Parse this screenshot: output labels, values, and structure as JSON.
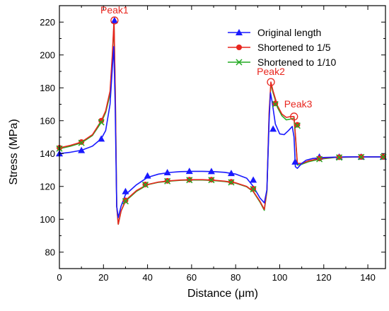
{
  "chart_data": {
    "type": "line",
    "xlabel": "Distance (μm)",
    "ylabel": "Stress (MPa)",
    "xlim": [
      0,
      148
    ],
    "ylim": [
      70,
      230
    ],
    "xticks": [
      0,
      20,
      40,
      60,
      80,
      100,
      120,
      140
    ],
    "yticks": [
      80,
      100,
      120,
      140,
      160,
      180,
      200,
      220
    ],
    "grid": false,
    "legend_position": "top-right",
    "series": [
      {
        "name": "Original length",
        "color": "#1a1aff",
        "marker": "triangle",
        "curve": [
          [
            0,
            140
          ],
          [
            5,
            140.8
          ],
          [
            10,
            142
          ],
          [
            15,
            144.5
          ],
          [
            19,
            149
          ],
          [
            21,
            154
          ],
          [
            23,
            170
          ],
          [
            24,
            192
          ],
          [
            24.7,
            205
          ],
          [
            25.3,
            170
          ],
          [
            26,
            108
          ],
          [
            26.7,
            101
          ],
          [
            28,
            108
          ],
          [
            30,
            115
          ],
          [
            35,
            121
          ],
          [
            40,
            125.5
          ],
          [
            45,
            127.5
          ],
          [
            50,
            128.5
          ],
          [
            55,
            129
          ],
          [
            60,
            129.2
          ],
          [
            65,
            129.2
          ],
          [
            70,
            129
          ],
          [
            75,
            128.6
          ],
          [
            80,
            127.5
          ],
          [
            85,
            125
          ],
          [
            88,
            120
          ],
          [
            91,
            113
          ],
          [
            93,
            110
          ],
          [
            94.2,
            118
          ],
          [
            95.2,
            160
          ],
          [
            95.8,
            177
          ],
          [
            96.5,
            172
          ],
          [
            98,
            158
          ],
          [
            100,
            152
          ],
          [
            102,
            151.5
          ],
          [
            104,
            154
          ],
          [
            105.7,
            156.5
          ],
          [
            106.5,
            150
          ],
          [
            107.1,
            132
          ],
          [
            108,
            131
          ],
          [
            110,
            134
          ],
          [
            112,
            136
          ],
          [
            115,
            137
          ],
          [
            120,
            137.6
          ],
          [
            130,
            138
          ],
          [
            148,
            138
          ]
        ],
        "markers": [
          [
            0,
            140
          ],
          [
            10,
            142
          ],
          [
            19,
            149
          ],
          [
            25,
            221
          ],
          [
            30,
            117
          ],
          [
            40,
            126.5
          ],
          [
            49,
            128.5
          ],
          [
            59,
            129.3
          ],
          [
            69,
            129.2
          ],
          [
            78,
            128
          ],
          [
            88,
            124
          ],
          [
            97,
            155
          ],
          [
            107,
            135
          ],
          [
            118,
            138
          ],
          [
            127,
            138
          ],
          [
            137,
            138
          ],
          [
            147,
            138
          ]
        ]
      },
      {
        "name": "Shortened to 1/5",
        "color": "#e8261e",
        "marker": "circle",
        "curve": [
          [
            0,
            143.5
          ],
          [
            5,
            145
          ],
          [
            10,
            147
          ],
          [
            15,
            151.5
          ],
          [
            19,
            160
          ],
          [
            21,
            166
          ],
          [
            23,
            178
          ],
          [
            24,
            200
          ],
          [
            24.8,
            221
          ],
          [
            25.4,
            175
          ],
          [
            26,
            108
          ],
          [
            26.7,
            97
          ],
          [
            28,
            105
          ],
          [
            30,
            111.5
          ],
          [
            35,
            117.5
          ],
          [
            40,
            121.2
          ],
          [
            45,
            122.7
          ],
          [
            50,
            123.4
          ],
          [
            55,
            123.9
          ],
          [
            60,
            124.1
          ],
          [
            65,
            124.1
          ],
          [
            70,
            123.8
          ],
          [
            75,
            123.2
          ],
          [
            80,
            122.2
          ],
          [
            85,
            120
          ],
          [
            88,
            117
          ],
          [
            91,
            111
          ],
          [
            93,
            106
          ],
          [
            94.2,
            118
          ],
          [
            95.2,
            165
          ],
          [
            96,
            183.5
          ],
          [
            97,
            178
          ],
          [
            99,
            169
          ],
          [
            101,
            164
          ],
          [
            103,
            162
          ],
          [
            105,
            162.5
          ],
          [
            106.5,
            162.5
          ],
          [
            107.2,
            150
          ],
          [
            108,
            134
          ],
          [
            110,
            134
          ],
          [
            113,
            135.5
          ],
          [
            118,
            137
          ],
          [
            125,
            137.8
          ],
          [
            135,
            138
          ],
          [
            148,
            138
          ]
        ],
        "markers": [
          [
            0,
            143.5
          ],
          [
            10,
            147
          ],
          [
            19,
            160
          ],
          [
            30,
            111.5
          ],
          [
            39,
            121.2
          ],
          [
            49,
            123.4
          ],
          [
            59,
            124.1
          ],
          [
            69,
            124.1
          ],
          [
            78,
            122.8
          ],
          [
            88,
            118.6
          ],
          [
            98,
            170.5
          ],
          [
            108,
            157.5
          ],
          [
            118,
            137
          ],
          [
            127,
            137.8
          ],
          [
            137,
            138
          ],
          [
            147,
            138
          ]
        ]
      },
      {
        "name": "Shortened to 1/10",
        "color": "#22aa22",
        "marker": "x",
        "curve": [
          [
            0,
            143
          ],
          [
            5,
            144.5
          ],
          [
            10,
            146.5
          ],
          [
            15,
            151
          ],
          [
            19,
            159
          ],
          [
            21,
            165
          ],
          [
            23,
            176
          ],
          [
            24,
            198
          ],
          [
            24.8,
            219
          ],
          [
            25.4,
            174
          ],
          [
            26,
            108
          ],
          [
            26.7,
            97
          ],
          [
            28,
            105
          ],
          [
            30,
            111
          ],
          [
            35,
            117
          ],
          [
            40,
            121
          ],
          [
            45,
            122.5
          ],
          [
            50,
            123.2
          ],
          [
            55,
            123.7
          ],
          [
            60,
            123.9
          ],
          [
            65,
            123.9
          ],
          [
            70,
            123.6
          ],
          [
            75,
            123
          ],
          [
            80,
            122
          ],
          [
            85,
            119.8
          ],
          [
            88,
            116.8
          ],
          [
            91,
            110.5
          ],
          [
            93,
            105.5
          ],
          [
            94.2,
            117
          ],
          [
            95.2,
            163
          ],
          [
            96,
            182.5
          ],
          [
            97,
            177
          ],
          [
            99,
            168
          ],
          [
            101,
            163
          ],
          [
            103,
            160.5
          ],
          [
            105,
            161
          ],
          [
            106.5,
            161.5
          ],
          [
            107.2,
            149
          ],
          [
            108,
            133
          ],
          [
            110,
            133.5
          ],
          [
            113,
            135
          ],
          [
            118,
            136.6
          ],
          [
            125,
            137.6
          ],
          [
            135,
            137.9
          ],
          [
            148,
            137.9
          ]
        ],
        "markers": [
          [
            0,
            143
          ],
          [
            10,
            146.5
          ],
          [
            19,
            159
          ],
          [
            30,
            111
          ],
          [
            39,
            121
          ],
          [
            49,
            123.2
          ],
          [
            59,
            123.9
          ],
          [
            69,
            123.9
          ],
          [
            78,
            122.5
          ],
          [
            88,
            118.3
          ],
          [
            98,
            170
          ],
          [
            108,
            157
          ],
          [
            118,
            136.6
          ],
          [
            127,
            137.6
          ],
          [
            137,
            137.9
          ],
          [
            147,
            137.9
          ]
        ]
      }
    ],
    "annotations": [
      {
        "label": "Peak1",
        "x": 25,
        "y": 221,
        "color": "#e8261e"
      },
      {
        "label": "Peak2",
        "x": 96,
        "y": 183.5,
        "color": "#e8261e"
      },
      {
        "label": "Peak3",
        "x": 106.5,
        "y": 162.5,
        "color": "#e8261e"
      }
    ]
  }
}
